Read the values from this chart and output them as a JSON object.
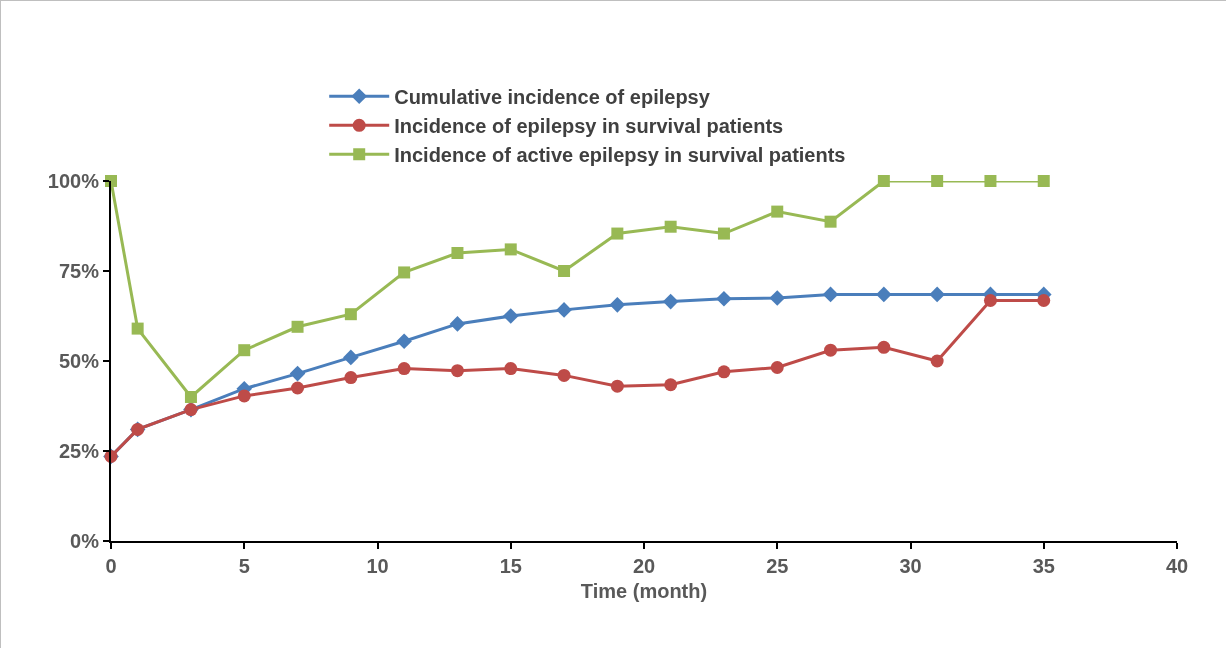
{
  "chart_data": {
    "type": "line",
    "xlabel": "Time (month)",
    "x": [
      0,
      1,
      3,
      5,
      7,
      9,
      11,
      13,
      15,
      17,
      19,
      21,
      23,
      25,
      27,
      29,
      31,
      33,
      35
    ],
    "series": [
      {
        "name": "Cumulative incidence of epilepsy",
        "color": "#4a7ebb",
        "marker": "diamond",
        "values": [
          23.5,
          31,
          36.5,
          42.3,
          46.5,
          51,
          55.5,
          60.3,
          62.5,
          64.2,
          65.6,
          66.5,
          67.3,
          67.5,
          68.5,
          68.5,
          68.5,
          68.5,
          68.5
        ]
      },
      {
        "name": "Incidence of epilepsy in survival patients",
        "color": "#be4b48",
        "marker": "circle",
        "values": [
          23.5,
          31,
          36.5,
          40.3,
          42.5,
          45.4,
          47.9,
          47.3,
          47.9,
          46,
          43,
          43.4,
          47,
          48.2,
          53,
          53.8,
          50,
          66.8,
          66.8
        ]
      },
      {
        "name": "Incidence of active epilepsy in survival patients",
        "color": "#98b954",
        "marker": "square",
        "values": [
          100,
          59,
          40,
          53,
          59.5,
          63,
          74.6,
          80,
          81,
          75,
          85.4,
          87.3,
          85.4,
          91.5,
          88.7,
          100,
          100,
          100,
          100
        ]
      }
    ],
    "xlim": [
      0,
      40
    ],
    "xticks": [
      0,
      5,
      10,
      15,
      20,
      25,
      30,
      35,
      40
    ],
    "ylim": [
      0,
      100
    ],
    "yticks": [
      {
        "value": 0,
        "label": "0%"
      },
      {
        "value": 25,
        "label": "25%"
      },
      {
        "value": 50,
        "label": "50%"
      },
      {
        "value": 75,
        "label": "75%"
      },
      {
        "value": 100,
        "label": "100%"
      }
    ],
    "grid": false,
    "legend": "top",
    "line_style": "solid"
  }
}
